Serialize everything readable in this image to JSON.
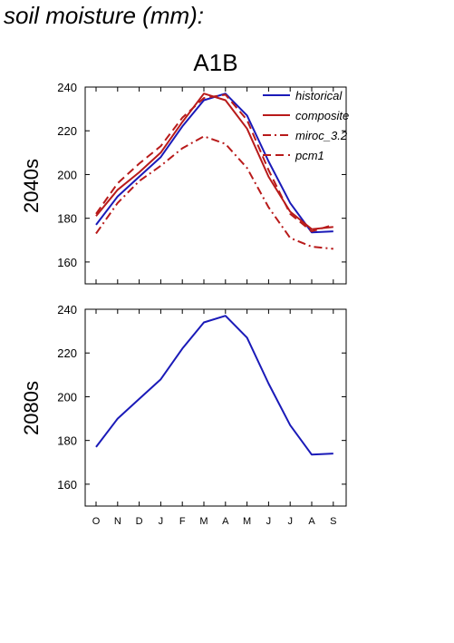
{
  "page_title": "soil moisture (mm):",
  "chart_title": "A1B",
  "colors": {
    "historical": "#1a1ab8",
    "model": "#b81a1a"
  },
  "chart_data": [
    {
      "type": "line",
      "panel_label": "2040s",
      "categories": [
        "O",
        "N",
        "D",
        "J",
        "F",
        "M",
        "A",
        "M",
        "J",
        "J",
        "A",
        "S"
      ],
      "ylim": [
        150,
        240
      ],
      "yticks": [
        160,
        180,
        200,
        220,
        240
      ],
      "grid": false,
      "legend": "top-right",
      "series": [
        {
          "name": "historical",
          "color": "#1a1ab8",
          "dash": "solid",
          "values": [
            177,
            190,
            199,
            208,
            222,
            234,
            237,
            227,
            206,
            187,
            173.5,
            174
          ]
        },
        {
          "name": "composite",
          "color": "#b81a1a",
          "dash": "solid",
          "values": [
            181,
            193,
            201,
            210,
            224,
            237,
            234,
            221,
            199,
            183,
            175,
            176
          ]
        },
        {
          "name": "miroc_3.2",
          "color": "#b81a1a",
          "dash": "dashdot",
          "values": [
            173,
            187,
            197,
            204,
            212,
            217.5,
            214,
            203,
            185,
            171,
            167,
            166
          ]
        },
        {
          "name": "pcm1",
          "color": "#b81a1a",
          "dash": "dashed",
          "values": [
            182,
            196,
            205,
            213,
            226,
            235,
            236.5,
            225,
            202,
            182,
            174,
            177
          ]
        }
      ]
    },
    {
      "type": "line",
      "panel_label": "2080s",
      "categories": [
        "O",
        "N",
        "D",
        "J",
        "F",
        "M",
        "A",
        "M",
        "J",
        "J",
        "A",
        "S"
      ],
      "ylim": [
        150,
        240
      ],
      "yticks": [
        160,
        180,
        200,
        220,
        240
      ],
      "grid": false,
      "series": [
        {
          "name": "historical",
          "color": "#1a1ab8",
          "dash": "solid",
          "values": [
            177,
            190,
            199,
            208,
            222,
            234,
            237,
            227,
            206,
            187,
            173.5,
            174
          ]
        }
      ]
    }
  ]
}
